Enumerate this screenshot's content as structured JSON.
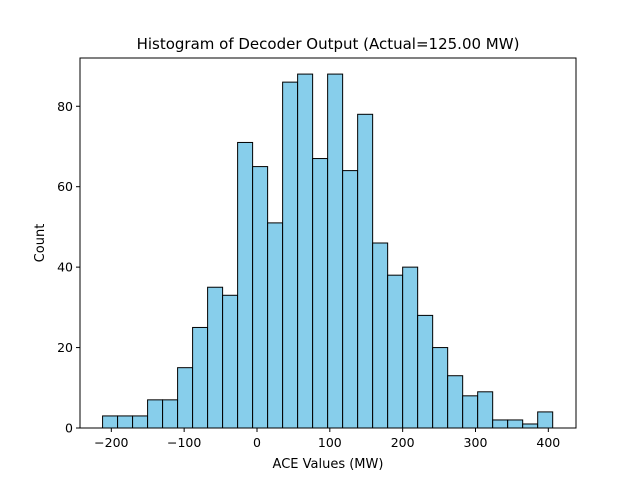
{
  "chart_data": {
    "type": "bar",
    "title": "Histogram of Decoder Output (Actual=125.00 MW)",
    "xlabel": "ACE Values (MW)",
    "ylabel": "Count",
    "xlim": [
      -243,
      438
    ],
    "ylim": [
      0,
      92
    ],
    "bin_start": -212,
    "bin_width": 20.6,
    "counts": [
      3,
      3,
      3,
      7,
      7,
      15,
      25,
      35,
      33,
      71,
      65,
      51,
      86,
      88,
      67,
      88,
      64,
      78,
      46,
      38,
      40,
      28,
      20,
      13,
      8,
      9,
      2,
      2,
      1,
      4
    ],
    "xticks": [
      {
        "value": -200,
        "label": "−200"
      },
      {
        "value": -100,
        "label": "−100"
      },
      {
        "value": 0,
        "label": "0"
      },
      {
        "value": 100,
        "label": "100"
      },
      {
        "value": 200,
        "label": "200"
      },
      {
        "value": 300,
        "label": "300"
      },
      {
        "value": 400,
        "label": "400"
      }
    ],
    "yticks": [
      {
        "value": 0,
        "label": "0"
      },
      {
        "value": 20,
        "label": "20"
      },
      {
        "value": 40,
        "label": "40"
      },
      {
        "value": 60,
        "label": "60"
      },
      {
        "value": 80,
        "label": "80"
      }
    ],
    "grid": false,
    "colors": {
      "bar_fill": "#87ceeb",
      "bar_edge": "#000000"
    }
  }
}
